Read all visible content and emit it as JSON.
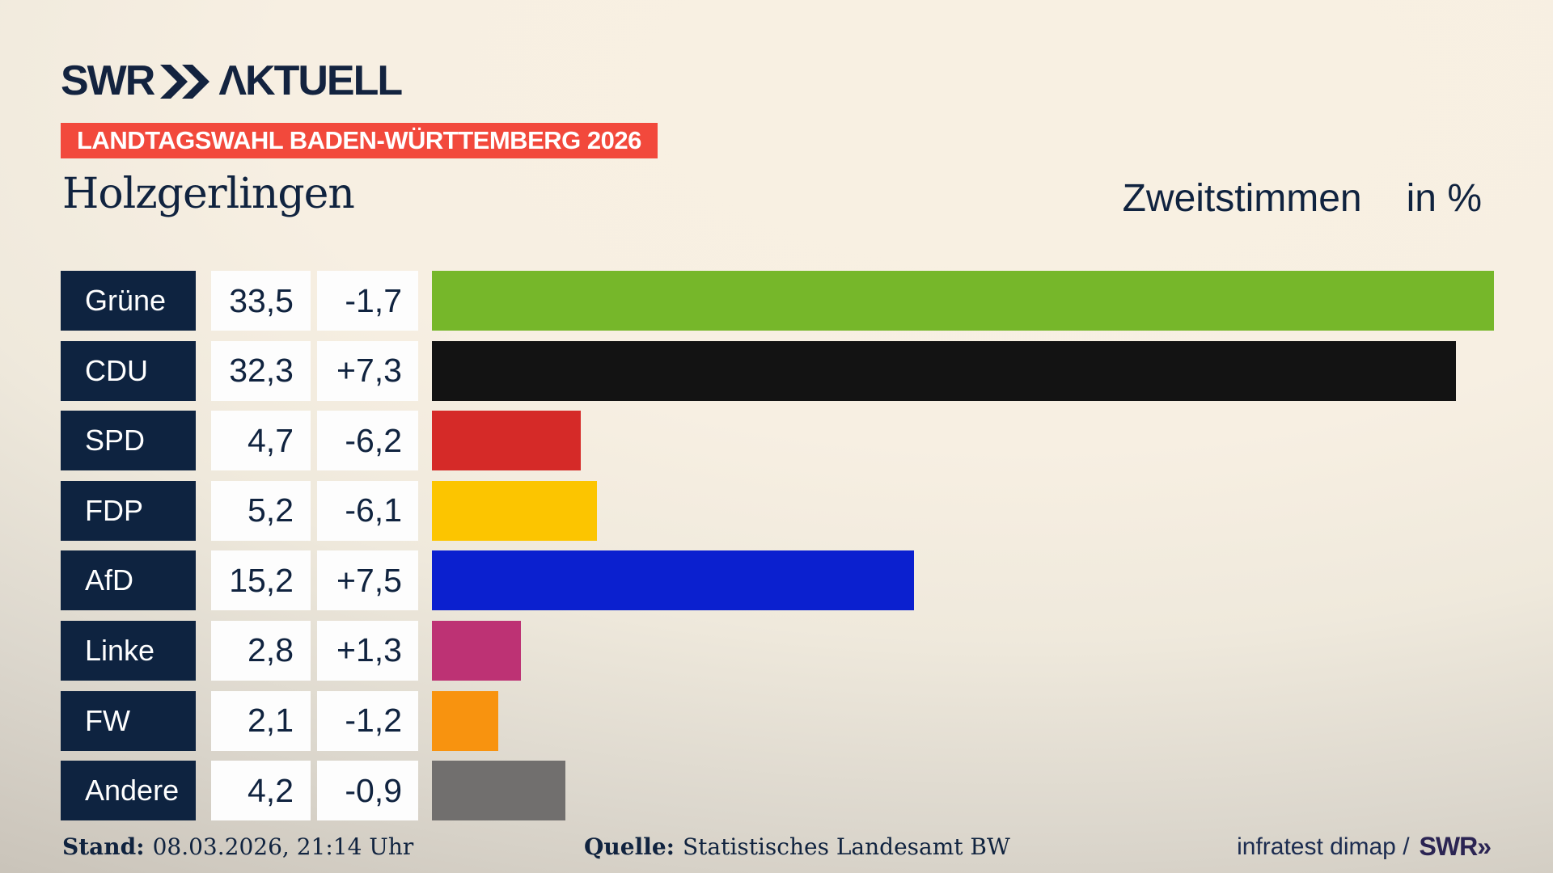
{
  "header": {
    "logo": {
      "brand": "SWR",
      "suffix": "ΛKTUELL"
    },
    "badge": "LANDTAGSWAHL BADEN-WÜRTTEMBERG 2026",
    "region_title": "Holzgerlingen",
    "measure_title": "Zweitstimmen",
    "unit_label": "in %"
  },
  "chart_data": {
    "type": "bar",
    "orientation": "horizontal",
    "title": "Zweitstimmen in %",
    "subtitle": "Holzgerlingen — Landtagswahl Baden-Württemberg 2026",
    "categories": [
      "Grüne",
      "CDU",
      "SPD",
      "FDP",
      "AfD",
      "Linke",
      "FW",
      "Andere"
    ],
    "values": [
      33.5,
      32.3,
      4.7,
      5.2,
      15.2,
      2.8,
      2.1,
      4.2
    ],
    "changes": [
      -1.7,
      7.3,
      -6.2,
      -6.1,
      7.5,
      1.3,
      -1.2,
      -0.9
    ],
    "value_labels": [
      "33,5",
      "32,3",
      "4,7",
      "5,2",
      "15,2",
      "2,8",
      "2,1",
      "4,2"
    ],
    "change_labels": [
      "-1,7",
      "+7,3",
      "-6,2",
      "-6,1",
      "+7,5",
      "+1,3",
      "-1,2",
      "-0,9"
    ],
    "bar_colors": [
      "#76b72a",
      "#131313",
      "#d52a28",
      "#fcc500",
      "#0b20cf",
      "#bd3274",
      "#f8930f",
      "#716f6e"
    ],
    "xlim": [
      0,
      35.4
    ],
    "grid": false,
    "legend": "none"
  },
  "footer": {
    "stand_label": "Stand:",
    "stand_value": "08.03.2026, 21:14 Uhr",
    "source_label": "Quelle:",
    "source_value": "Statistisches Landesamt BW",
    "credit_text": "infratest dimap /",
    "credit_logo": "SWR»"
  },
  "colors": {
    "navy": "#10233f",
    "label_box": "#0e2340",
    "badge_red": "#f2493c",
    "cell_bg": "#fdfdfd"
  }
}
